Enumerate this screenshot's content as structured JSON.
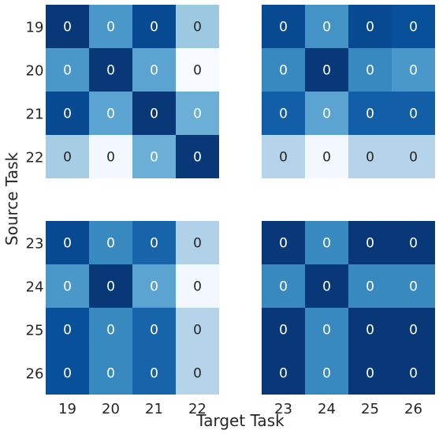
{
  "chart_data": {
    "type": "heatmap",
    "xlabel": "Target Task",
    "ylabel": "Source Task",
    "colormap": [
      "#f7fbff",
      "#deebf7",
      "#c6dbef",
      "#9ecae1",
      "#6baed6",
      "#4292c6",
      "#2171b5",
      "#08519c",
      "#08306b"
    ],
    "light_text_color": "#ffffff",
    "dark_text_color": "#262626",
    "row_labels_top": [
      "19",
      "20",
      "21",
      "22"
    ],
    "row_labels_bottom": [
      "23",
      "24",
      "25",
      "26"
    ],
    "col_labels_left": [
      "19",
      "20",
      "21",
      "22"
    ],
    "col_labels_right": [
      "23",
      "24",
      "25",
      "26"
    ],
    "panels": [
      {
        "rows": [
          "19",
          "20",
          "21",
          "22"
        ],
        "cols": [
          "19",
          "20",
          "21",
          "22"
        ],
        "labels": [
          [
            "0",
            "0",
            "0",
            "0"
          ],
          [
            "0",
            "0",
            "0",
            "0"
          ],
          [
            "0",
            "0",
            "0",
            "0"
          ],
          [
            "0",
            "0",
            "0",
            "0"
          ]
        ],
        "intensity": [
          [
            0.97,
            0.6,
            0.9,
            0.38
          ],
          [
            0.6,
            0.97,
            0.55,
            0.0
          ],
          [
            0.9,
            0.55,
            0.97,
            0.5
          ],
          [
            0.35,
            0.02,
            0.5,
            0.97
          ]
        ]
      },
      {
        "rows": [
          "19",
          "20",
          "21",
          "22"
        ],
        "cols": [
          "23",
          "24",
          "25",
          "26"
        ],
        "labels": [
          [
            "0",
            "0",
            "0",
            "0"
          ],
          [
            "0",
            "0",
            "0",
            "0"
          ],
          [
            "0",
            "0",
            "0",
            "0"
          ],
          [
            "0",
            "0",
            "0",
            "0"
          ]
        ],
        "intensity": [
          [
            0.9,
            0.62,
            0.9,
            0.88
          ],
          [
            0.66,
            0.97,
            0.66,
            0.6
          ],
          [
            0.82,
            0.55,
            0.82,
            0.82
          ],
          [
            0.3,
            0.02,
            0.3,
            0.3
          ]
        ]
      },
      {
        "rows": [
          "23",
          "24",
          "25",
          "26"
        ],
        "cols": [
          "19",
          "20",
          "21",
          "22"
        ],
        "labels": [
          [
            "0",
            "0",
            "0",
            "0"
          ],
          [
            "0",
            "0",
            "0",
            "0"
          ],
          [
            "0",
            "0",
            "0",
            "0"
          ],
          [
            "0",
            "0",
            "0",
            "0"
          ]
        ],
        "intensity": [
          [
            0.9,
            0.66,
            0.8,
            0.32
          ],
          [
            0.6,
            0.97,
            0.55,
            0.02
          ],
          [
            0.88,
            0.66,
            0.8,
            0.3
          ],
          [
            0.88,
            0.66,
            0.8,
            0.3
          ]
        ]
      },
      {
        "rows": [
          "23",
          "24",
          "25",
          "26"
        ],
        "cols": [
          "23",
          "24",
          "25",
          "26"
        ],
        "labels": [
          [
            "0",
            "0",
            "0",
            "0"
          ],
          [
            "0",
            "0",
            "0",
            "0"
          ],
          [
            "0",
            "0",
            "0",
            "0"
          ],
          [
            "0",
            "0",
            "0",
            "0"
          ]
        ],
        "intensity": [
          [
            0.97,
            0.66,
            0.97,
            0.97
          ],
          [
            0.66,
            0.97,
            0.66,
            0.66
          ],
          [
            0.97,
            0.66,
            0.97,
            0.97
          ],
          [
            0.97,
            0.66,
            0.97,
            0.97
          ]
        ]
      }
    ]
  }
}
